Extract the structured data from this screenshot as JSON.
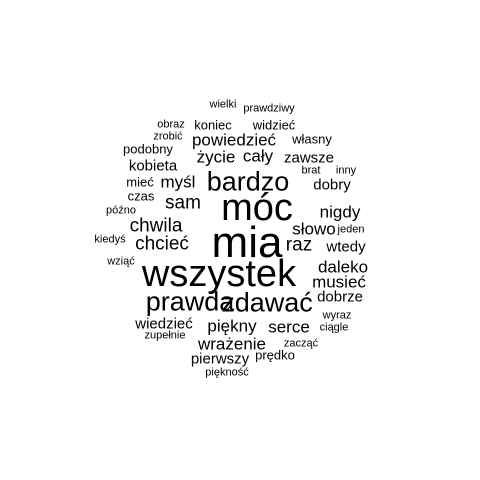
{
  "word_cloud": {
    "words": [
      {
        "text": "mia",
        "weight": 40
      },
      {
        "text": "móc",
        "weight": 34
      },
      {
        "text": "wszystek",
        "weight": 34
      },
      {
        "text": "bardzo",
        "weight": 24
      },
      {
        "text": "prawda",
        "weight": 18
      },
      {
        "text": "zdawać",
        "weight": 18
      },
      {
        "text": "sam",
        "weight": 17
      },
      {
        "text": "chwila",
        "weight": 16
      },
      {
        "text": "chcieć",
        "weight": 15
      },
      {
        "text": "raz",
        "weight": 15
      },
      {
        "text": "słowo",
        "weight": 14
      },
      {
        "text": "piękny",
        "weight": 14
      },
      {
        "text": "serce",
        "weight": 14
      },
      {
        "text": "nigdy",
        "weight": 13
      },
      {
        "text": "daleko",
        "weight": 13
      },
      {
        "text": "musieć",
        "weight": 13
      },
      {
        "text": "wrażenie",
        "weight": 13
      },
      {
        "text": "powiedzieć",
        "weight": 13
      },
      {
        "text": "cały",
        "weight": 13
      },
      {
        "text": "życie",
        "weight": 13
      },
      {
        "text": "myśl",
        "weight": 13
      },
      {
        "text": "kobieta",
        "weight": 12
      },
      {
        "text": "zawsze",
        "weight": 12
      },
      {
        "text": "dobry",
        "weight": 12
      },
      {
        "text": "wtedy",
        "weight": 12
      },
      {
        "text": "dobrze",
        "weight": 12
      },
      {
        "text": "wiedzieć",
        "weight": 12
      },
      {
        "text": "pierwszy",
        "weight": 12
      },
      {
        "text": "koniec",
        "weight": 11
      },
      {
        "text": "widzieć",
        "weight": 11
      },
      {
        "text": "własny",
        "weight": 11
      },
      {
        "text": "podobny",
        "weight": 11
      },
      {
        "text": "czas",
        "weight": 10
      },
      {
        "text": "prędko",
        "weight": 10
      },
      {
        "text": "mieć",
        "weight": 10
      },
      {
        "text": "brat",
        "weight": 9
      },
      {
        "text": "inny",
        "weight": 9
      },
      {
        "text": "jeden",
        "weight": 9
      },
      {
        "text": "obraz",
        "weight": 9
      },
      {
        "text": "zrobić",
        "weight": 9
      },
      {
        "text": "wielki",
        "weight": 9
      },
      {
        "text": "prawdziwy",
        "weight": 9
      },
      {
        "text": "późno",
        "weight": 9
      },
      {
        "text": "kiedyś",
        "weight": 9
      },
      {
        "text": "wziąć",
        "weight": 9
      },
      {
        "text": "wyraz",
        "weight": 9
      },
      {
        "text": "ciągle",
        "weight": 9
      },
      {
        "text": "zupełnie",
        "weight": 9
      },
      {
        "text": "zacząć",
        "weight": 9
      },
      {
        "text": "piękność",
        "weight": 9
      }
    ]
  }
}
